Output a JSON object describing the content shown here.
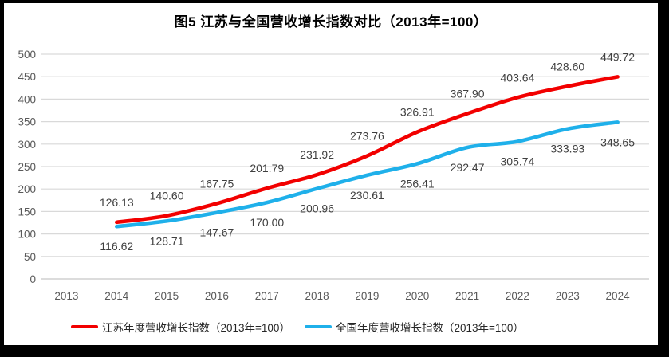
{
  "title": "图5  江苏与全国营收增长指数对比（2013年=100）",
  "chart_data": {
    "type": "line",
    "title": "图5  江苏与全国营收增长指数对比（2013年=100）",
    "categories": [
      "2013",
      "2014",
      "2015",
      "2016",
      "2017",
      "2018",
      "2019",
      "2020",
      "2021",
      "2022",
      "2023",
      "2024"
    ],
    "series": [
      {
        "id": "jiangsu",
        "name": "江苏年度营收增长指数（2013年=100）",
        "color": "#f20000",
        "label_side": "above",
        "values": [
          null,
          126.13,
          140.6,
          167.75,
          201.79,
          231.92,
          273.76,
          326.91,
          367.9,
          403.64,
          428.6,
          449.72
        ]
      },
      {
        "id": "national",
        "name": "全国年度营收增长指数（2013年=100）",
        "color": "#1fb0ea",
        "label_side": "below",
        "values": [
          null,
          116.62,
          128.71,
          147.67,
          170,
          200.96,
          230.61,
          256.41,
          292.47,
          305.74,
          333.93,
          348.65
        ]
      }
    ],
    "ylim": [
      0,
      500
    ],
    "y_tick_step": 50,
    "y_ticks": [
      0,
      50,
      100,
      150,
      200,
      250,
      300,
      350,
      400,
      450,
      500
    ],
    "grid": "horizontal",
    "legend_position": "bottom",
    "colors": {
      "gridline": "#d9d9d9",
      "axis_text": "#595959",
      "data_label_text": "#3f3f3f",
      "background": "#ffffff",
      "frame": "#000000"
    }
  }
}
